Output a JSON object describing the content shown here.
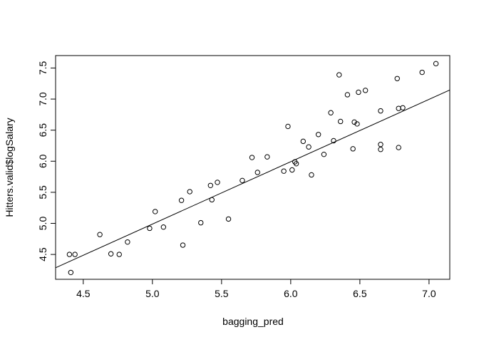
{
  "chart_data": {
    "type": "scatter",
    "title": "",
    "xlabel": "bagging_pred",
    "ylabel": "Hitters.valid$logSalary",
    "xlim": [
      4.3,
      7.15
    ],
    "ylim": [
      4.1,
      7.7
    ],
    "xticks": [
      "4.5",
      "5.0",
      "5.5",
      "6.0",
      "6.5",
      "7.0"
    ],
    "yticks": [
      "4.5",
      "5.0",
      "5.5",
      "6.0",
      "6.5",
      "7.0",
      "7.5"
    ],
    "grid": false,
    "legend": "none",
    "marker": "open-circle",
    "points": [
      [
        4.4,
        4.5
      ],
      [
        4.44,
        4.5
      ],
      [
        4.41,
        4.21
      ],
      [
        4.62,
        4.82
      ],
      [
        4.7,
        4.51
      ],
      [
        4.76,
        4.5
      ],
      [
        4.82,
        4.7
      ],
      [
        4.98,
        4.92
      ],
      [
        5.02,
        5.19
      ],
      [
        5.08,
        4.94
      ],
      [
        5.21,
        5.37
      ],
      [
        5.22,
        4.65
      ],
      [
        5.27,
        5.51
      ],
      [
        5.35,
        5.01
      ],
      [
        5.42,
        5.61
      ],
      [
        5.43,
        5.38
      ],
      [
        5.47,
        5.66
      ],
      [
        5.55,
        5.07
      ],
      [
        5.65,
        5.69
      ],
      [
        5.72,
        6.06
      ],
      [
        5.76,
        5.82
      ],
      [
        5.83,
        6.07
      ],
      [
        5.95,
        5.84
      ],
      [
        5.98,
        6.56
      ],
      [
        6.01,
        5.86
      ],
      [
        6.03,
        5.99
      ],
      [
        6.04,
        5.96
      ],
      [
        6.09,
        6.32
      ],
      [
        6.13,
        6.23
      ],
      [
        6.15,
        5.78
      ],
      [
        6.2,
        6.43
      ],
      [
        6.24,
        6.11
      ],
      [
        6.29,
        6.78
      ],
      [
        6.31,
        6.33
      ],
      [
        6.35,
        7.39
      ],
      [
        6.36,
        6.64
      ],
      [
        6.41,
        7.07
      ],
      [
        6.45,
        6.2
      ],
      [
        6.46,
        6.63
      ],
      [
        6.48,
        6.6
      ],
      [
        6.49,
        7.11
      ],
      [
        6.54,
        7.14
      ],
      [
        6.65,
        6.81
      ],
      [
        6.65,
        6.27
      ],
      [
        6.65,
        6.19
      ],
      [
        6.77,
        7.33
      ],
      [
        6.78,
        6.22
      ],
      [
        6.78,
        6.85
      ],
      [
        6.81,
        6.86
      ],
      [
        6.95,
        7.43
      ],
      [
        7.05,
        7.57
      ]
    ],
    "fit_line": {
      "x": [
        4.3,
        7.15
      ],
      "y": [
        4.286,
        7.146
      ]
    }
  }
}
